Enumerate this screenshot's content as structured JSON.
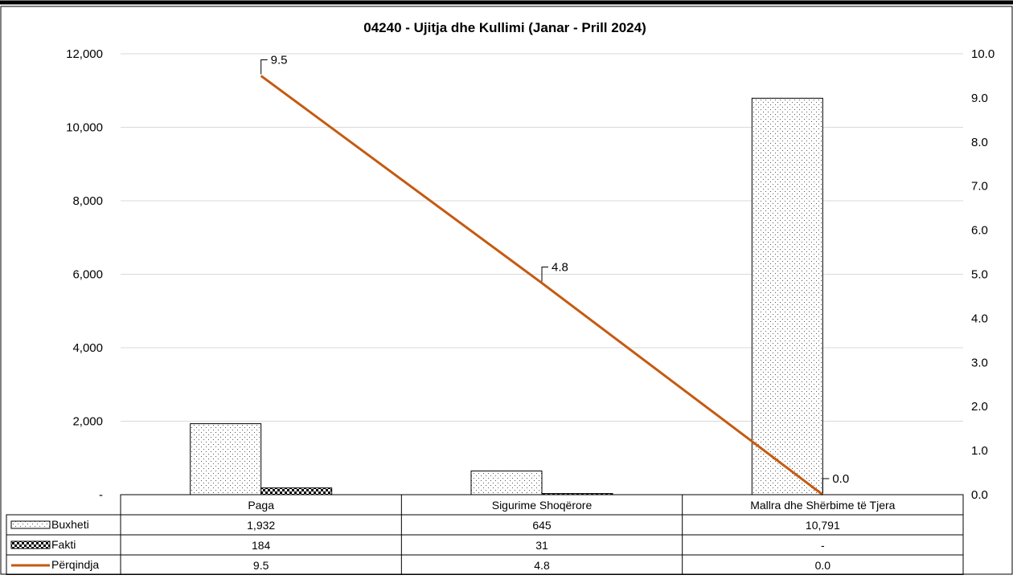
{
  "chart_data": {
    "type": "bar",
    "title": "04240 - Ujitja dhe Kullimi (Janar - Prill 2024)",
    "categories": [
      "Paga",
      "Sigurime Shoqërore",
      "Mallra dhe Shërbime të Tjera"
    ],
    "series": [
      {
        "name": "Buxheti",
        "type": "bar",
        "axis": "left",
        "pattern": "dots",
        "values": [
          1932,
          645,
          10791
        ],
        "labels": [
          "1,932",
          "645",
          "10,791"
        ]
      },
      {
        "name": "Fakti",
        "type": "bar",
        "axis": "left",
        "pattern": "checker",
        "values": [
          184,
          31,
          0
        ],
        "labels": [
          "184",
          "31",
          "-"
        ]
      },
      {
        "name": "Përqindja",
        "type": "line",
        "axis": "right",
        "color": "#c55a11",
        "values": [
          9.5,
          4.8,
          0.0
        ],
        "labels": [
          "9.5",
          "4.8",
          "0.0"
        ]
      }
    ],
    "ylim": [
      0,
      12000
    ],
    "y_ticks": [
      "-",
      "2,000",
      "4,000",
      "6,000",
      "8,000",
      "10,000",
      "12,000"
    ],
    "y2lim": [
      0,
      10
    ],
    "y2_ticks": [
      "0.0",
      "1.0",
      "2.0",
      "3.0",
      "4.0",
      "5.0",
      "6.0",
      "7.0",
      "8.0",
      "9.0",
      "10.0"
    ],
    "grid": true,
    "legend": "data-table"
  }
}
